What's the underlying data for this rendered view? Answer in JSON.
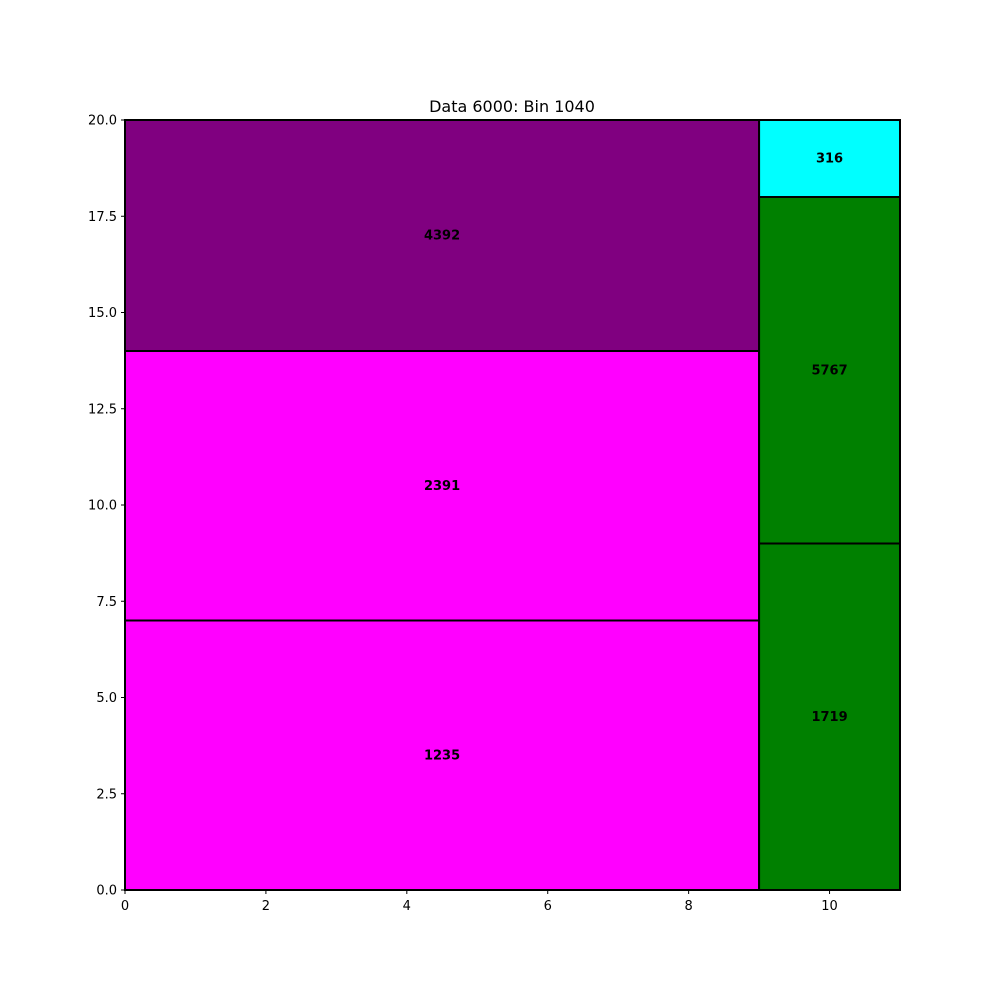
{
  "chart_data": {
    "type": "treemap",
    "title": "Data 6000: Bin 1040",
    "xlabel": "",
    "ylabel": "",
    "xlim": [
      0,
      11
    ],
    "ylim": [
      0,
      20
    ],
    "x_ticks": [
      {
        "value": 0,
        "label": "0"
      },
      {
        "value": 2,
        "label": "2"
      },
      {
        "value": 4,
        "label": "4"
      },
      {
        "value": 6,
        "label": "6"
      },
      {
        "value": 8,
        "label": "8"
      },
      {
        "value": 10,
        "label": "10"
      }
    ],
    "y_ticks": [
      {
        "value": 0,
        "label": "0.0"
      },
      {
        "value": 2.5,
        "label": "2.5"
      },
      {
        "value": 5,
        "label": "5.0"
      },
      {
        "value": 7.5,
        "label": "7.5"
      },
      {
        "value": 10,
        "label": "10.0"
      },
      {
        "value": 12.5,
        "label": "12.5"
      },
      {
        "value": 15,
        "label": "15.0"
      },
      {
        "value": 17.5,
        "label": "17.5"
      },
      {
        "value": 20,
        "label": "20.0"
      }
    ],
    "grid": false,
    "rectangles": [
      {
        "label": "1235",
        "x": 0,
        "y": 0,
        "w": 9,
        "h": 7,
        "color": "#ff00ff"
      },
      {
        "label": "2391",
        "x": 0,
        "y": 7,
        "w": 9,
        "h": 7,
        "color": "#ff00ff"
      },
      {
        "label": "4392",
        "x": 0,
        "y": 14,
        "w": 9,
        "h": 6,
        "color": "#800080"
      },
      {
        "label": "1719",
        "x": 9,
        "y": 0,
        "w": 2,
        "h": 9,
        "color": "#008000"
      },
      {
        "label": "5767",
        "x": 9,
        "y": 9,
        "w": 2,
        "h": 9,
        "color": "#008000"
      },
      {
        "label": "316",
        "x": 9,
        "y": 18,
        "w": 2,
        "h": 2,
        "color": "#00ffff"
      }
    ]
  }
}
